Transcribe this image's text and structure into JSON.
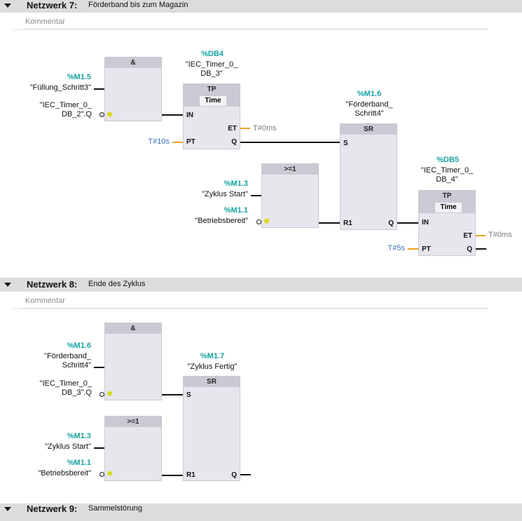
{
  "network7": {
    "number": "Netzwerk 7:",
    "title": "Förderband bis zum Magazin",
    "comment_placeholder": "Kommentar",
    "and_block": {
      "header": "&"
    },
    "in1_addr": "%M1.5",
    "in1_name": "\"Füllung_Schritt3\"",
    "in2_name": "\"IEC_Timer_0_\nDB_2\".Q",
    "tp1": {
      "db": "%DB4",
      "instance": "\"IEC_Timer_0_\nDB_3\"",
      "header": "TP",
      "type": "Time",
      "pin_in": "IN",
      "pin_pt": "PT",
      "pin_et": "ET",
      "pin_q": "Q",
      "pt_value": "T#10s",
      "et_value": "T#0ms"
    },
    "sr1": {
      "addr": "%M1.6",
      "name": "\"Förderband_\nSchritt4\"",
      "header": "SR",
      "pin_s": "S",
      "pin_r1": "R1",
      "pin_q": "Q"
    },
    "or_block": {
      "header": ">=1"
    },
    "or_in1_addr": "%M1.3",
    "or_in1_name": "\"Zyklus Start\"",
    "or_in2_addr": "%M1.1",
    "or_in2_name": "\"Betriebsbereit\"",
    "tp2": {
      "db": "%DB5",
      "instance": "\"IEC_Timer_0_\nDB_4\"",
      "header": "TP",
      "type": "Time",
      "pin_in": "IN",
      "pin_pt": "PT",
      "pin_et": "ET",
      "pin_q": "Q",
      "pt_value": "T#5s",
      "et_value": "T#0ms"
    }
  },
  "network8": {
    "number": "Netzwerk 8:",
    "title": "Ende des Zyklus",
    "comment_placeholder": "Kommentar",
    "and_block": {
      "header": "&"
    },
    "in1_addr": "%M1.6",
    "in1_name": "\"Förderband_\nSchritt4\"",
    "in2_name": "\"IEC_Timer_0_\nDB_3\".Q",
    "sr": {
      "addr": "%M1.7",
      "name": "\"Zyklus Fertig\"",
      "header": "SR",
      "pin_s": "S",
      "pin_r1": "R1",
      "pin_q": "Q"
    },
    "or_block": {
      "header": ">=1"
    },
    "or_in1_addr": "%M1.3",
    "or_in1_name": "\"Zyklus Start\"",
    "or_in2_addr": "%M1.1",
    "or_in2_name": "\"Betriebsbereit\""
  },
  "network9": {
    "number": "Netzwerk 9:",
    "title": "Sammelstörung"
  }
}
